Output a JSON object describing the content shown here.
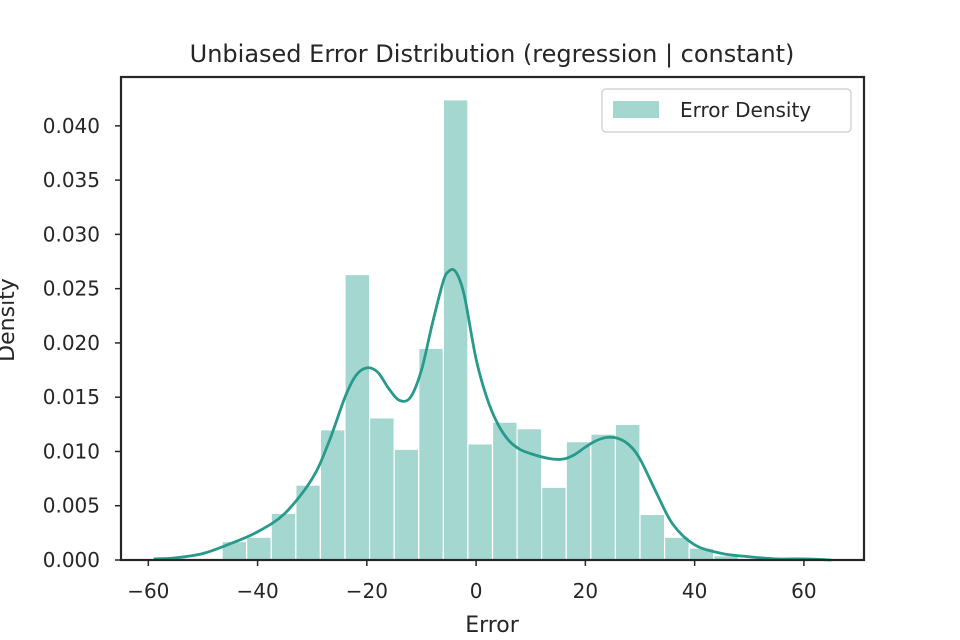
{
  "chart_data": {
    "type": "bar",
    "title": "Unbiased Error Distribution (regression | constant)",
    "xlabel": "Error",
    "ylabel": "Density",
    "xlim": [
      -65,
      71
    ],
    "ylim": [
      0,
      0.0445
    ],
    "xticks": [
      -60,
      -40,
      -20,
      0,
      20,
      40,
      60
    ],
    "xtick_labels": [
      "−60",
      "−40",
      "−20",
      "0",
      "20",
      "40",
      "60"
    ],
    "yticks": [
      0.0,
      0.005,
      0.01,
      0.015,
      0.02,
      0.025,
      0.03,
      0.035,
      0.04
    ],
    "ytick_labels": [
      "0.000",
      "0.005",
      "0.010",
      "0.015",
      "0.020",
      "0.025",
      "0.030",
      "0.035",
      "0.040"
    ],
    "grid": false,
    "legend_position": "top-right",
    "bar_color": "#a5d7d1",
    "line_color": "#279a8b",
    "histogram": {
      "name": "Error Density",
      "bin_width": 4.5,
      "bin_starts": [
        -46.5,
        -42.0,
        -37.5,
        -33.0,
        -28.5,
        -24.0,
        -19.5,
        -15.0,
        -10.5,
        -6.0,
        -1.5,
        3.0,
        7.5,
        12.0,
        16.5,
        21.0,
        25.5,
        30.0,
        34.5,
        39.0,
        43.5
      ],
      "values": [
        0.0017,
        0.0021,
        0.0043,
        0.0069,
        0.012,
        0.0263,
        0.0131,
        0.0102,
        0.0195,
        0.0424,
        0.0107,
        0.0127,
        0.0121,
        0.0067,
        0.0109,
        0.0116,
        0.0125,
        0.0042,
        0.0021,
        0.0011,
        0.0004
      ]
    },
    "kde": {
      "x": [
        -59,
        -55,
        -50,
        -45,
        -40,
        -35,
        -30,
        -27,
        -24,
        -22,
        -20,
        -18,
        -16,
        -14,
        -12,
        -10,
        -8,
        -6,
        -5,
        -4,
        -3,
        -2,
        0,
        2,
        4,
        6,
        8,
        10,
        12,
        14,
        16,
        18,
        20,
        22,
        24,
        26,
        28,
        30,
        33,
        36,
        40,
        45,
        50,
        55,
        60,
        65
      ],
      "y": [
        0.0001,
        0.0002,
        0.0006,
        0.0015,
        0.0026,
        0.0043,
        0.0075,
        0.0108,
        0.015,
        0.017,
        0.0177,
        0.0173,
        0.0158,
        0.0147,
        0.015,
        0.0175,
        0.0218,
        0.0257,
        0.0266,
        0.0267,
        0.0258,
        0.024,
        0.0185,
        0.0149,
        0.0125,
        0.011,
        0.0102,
        0.0098,
        0.0095,
        0.0093,
        0.0093,
        0.0097,
        0.0104,
        0.011,
        0.0113,
        0.0112,
        0.0106,
        0.0093,
        0.0062,
        0.0033,
        0.0014,
        0.0006,
        0.0003,
        0.0001,
        0.0001,
        0.0
      ]
    }
  }
}
